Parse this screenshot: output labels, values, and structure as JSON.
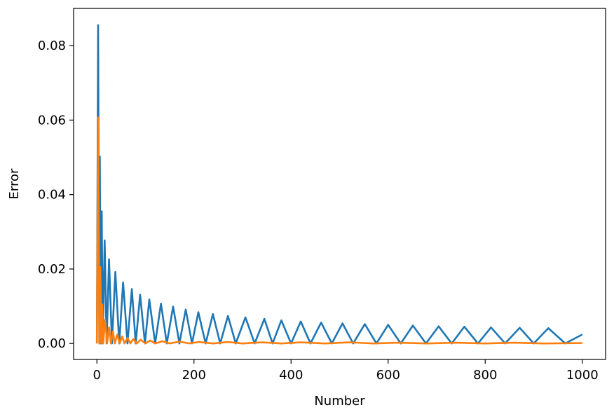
{
  "chart_data": {
    "type": "line",
    "title": "",
    "xlabel": "Number",
    "ylabel": "Error",
    "xlim": [
      -48,
      1048
    ],
    "ylim": [
      -0.0043,
      0.09
    ],
    "grid": false,
    "legend": "none",
    "x_ticks": [
      0,
      200,
      400,
      600,
      800,
      1000
    ],
    "x_tick_labels": [
      "0",
      "200",
      "400",
      "600",
      "800",
      "1000"
    ],
    "y_ticks": [
      0.0,
      0.02,
      0.04,
      0.06,
      0.08
    ],
    "y_tick_labels": [
      "0.00",
      "0.02",
      "0.04",
      "0.06",
      "0.08"
    ],
    "series": [
      {
        "color": "#1f77b4",
        "x": [
          0,
          2.5,
          5,
          6,
          8,
          10,
          12,
          16,
          20,
          25,
          31,
          38,
          46,
          54,
          63,
          72,
          80,
          89,
          99,
          108,
          120,
          132,
          144,
          157,
          170,
          183,
          196,
          209,
          224,
          239,
          254,
          270,
          286,
          306,
          325,
          345,
          362,
          380,
          400,
          420,
          440,
          462,
          484,
          506,
          528,
          552,
          576,
          600,
          626,
          651,
          678,
          704,
          731,
          757,
          785,
          812,
          841,
          871,
          900,
          930,
          965,
          1000
        ],
        "values": [
          0.0,
          0.0855,
          0.0,
          0.0502,
          0.0,
          0.0355,
          0.0,
          0.0277,
          0.0,
          0.0226,
          0.0,
          0.0192,
          0.0,
          0.0164,
          0.0,
          0.0146,
          0.0,
          0.0131,
          0.0,
          0.0118,
          0.0,
          0.0107,
          0.0,
          0.0099,
          0.0,
          0.0091,
          0.0,
          0.0084,
          0.0,
          0.0079,
          0.0,
          0.0074,
          0.0,
          0.007,
          0.0,
          0.0066,
          0.0,
          0.0062,
          0.0,
          0.0059,
          0.0,
          0.0056,
          0.0,
          0.0054,
          0.0,
          0.0052,
          0.0,
          0.005,
          0.0,
          0.0048,
          0.0,
          0.0046,
          0.0,
          0.0045,
          0.0,
          0.0043,
          0.0,
          0.0042,
          0.0,
          0.0041,
          0.0,
          0.0024
        ]
      },
      {
        "color": "#ff7f0e",
        "x": [
          0,
          2.5,
          5,
          7,
          9,
          11,
          13,
          17,
          21,
          25,
          29,
          33,
          37,
          42,
          47,
          52,
          57,
          63,
          69,
          75,
          82,
          90,
          100,
          110,
          120,
          135,
          150,
          170,
          190,
          210,
          240,
          270,
          300,
          340,
          380,
          420,
          470,
          520,
          570,
          620,
          680,
          740,
          800,
          860,
          920,
          1000
        ],
        "values": [
          0.0,
          0.0607,
          0.0,
          0.0205,
          0.0,
          0.0105,
          0.0,
          0.0063,
          0.0,
          0.0043,
          0.0,
          0.0032,
          0.0,
          0.0024,
          0.0,
          0.0019,
          0.0,
          0.0015,
          0.0,
          0.0012,
          0.0,
          0.001,
          0.0,
          0.0008,
          0.0,
          0.0006,
          0.0,
          0.0005,
          0.0,
          0.0004,
          0.0,
          0.0004,
          0.0,
          0.0003,
          0.0,
          0.0003,
          0.0,
          0.0003,
          0.0,
          0.0002,
          0.0,
          0.0002,
          0.0,
          0.0002,
          0.0,
          0.0001
        ]
      }
    ]
  }
}
